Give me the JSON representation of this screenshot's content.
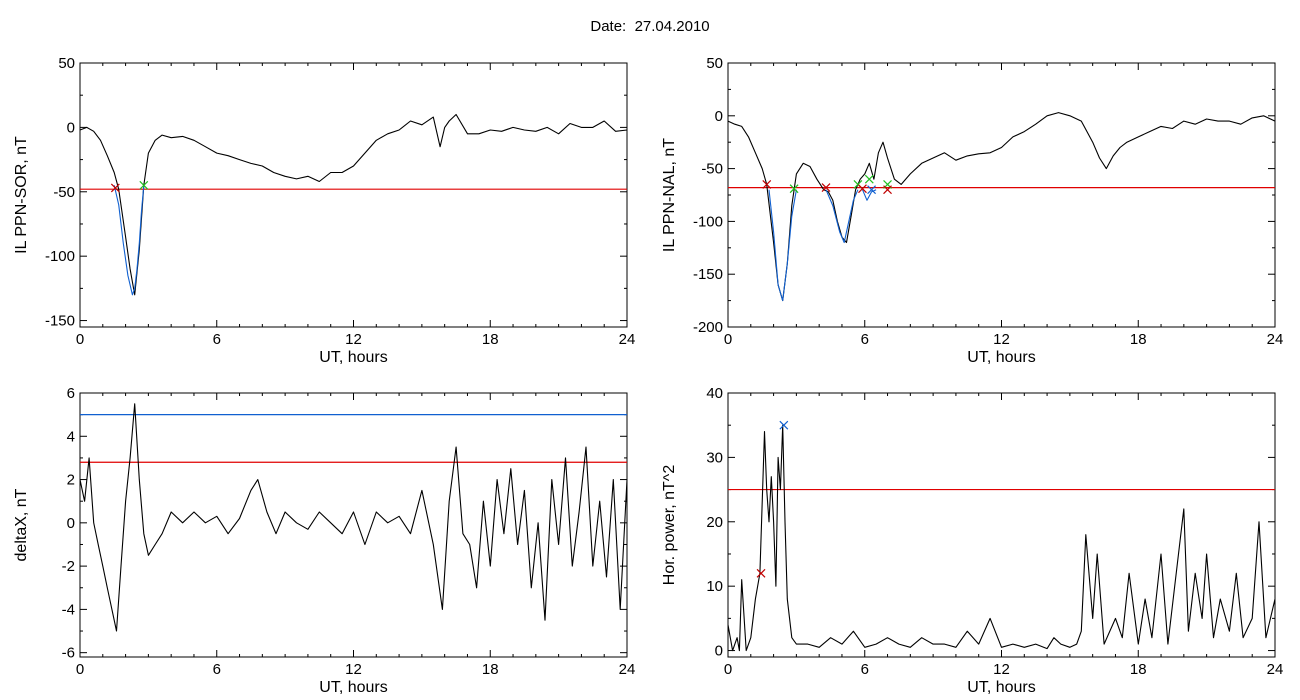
{
  "figure": {
    "date_label": "Date:",
    "date_value": "27.04.2010"
  },
  "chart_data": [
    {
      "type": "line",
      "ylabel": "IL PPN-SOR, nT",
      "xlabel": "UT, hours",
      "xlim": [
        0,
        24
      ],
      "ylim": [
        -155,
        50
      ],
      "xticks": [
        0,
        6,
        12,
        18,
        24
      ],
      "yticks": [
        50,
        0,
        -50,
        -100,
        -150
      ],
      "threshold": {
        "value": -48,
        "color": "#e00000"
      },
      "series": [
        {
          "color": "#000000",
          "x": [
            0,
            0.3,
            0.6,
            0.9,
            1.2,
            1.5,
            1.7,
            2.0,
            2.2,
            2.4,
            2.6,
            2.8,
            3.0,
            3.3,
            3.6,
            4.0,
            4.5,
            5.0,
            5.5,
            6.0,
            6.5,
            7.0,
            7.5,
            8.0,
            8.5,
            9.0,
            9.5,
            10.0,
            10.5,
            11.0,
            11.5,
            12.0,
            12.5,
            13.0,
            13.5,
            14.0,
            14.5,
            15.0,
            15.5,
            15.8,
            16.0,
            16.2,
            16.5,
            17.0,
            17.5,
            18.0,
            18.5,
            19.0,
            19.5,
            20.0,
            20.5,
            21.0,
            21.5,
            22.0,
            22.5,
            23.0,
            23.5,
            24.0
          ],
          "y": [
            -2,
            0,
            -3,
            -10,
            -22,
            -35,
            -48,
            -85,
            -110,
            -130,
            -95,
            -45,
            -20,
            -10,
            -6,
            -8,
            -7,
            -10,
            -15,
            -20,
            -22,
            -25,
            -28,
            -30,
            -35,
            -38,
            -40,
            -38,
            -42,
            -35,
            -35,
            -30,
            -20,
            -10,
            -5,
            -2,
            5,
            2,
            8,
            -15,
            0,
            5,
            10,
            -5,
            -5,
            -2,
            -3,
            0,
            -2,
            -3,
            0,
            -5,
            3,
            0,
            0,
            5,
            -3,
            -2
          ]
        },
        {
          "color": "#1060d0",
          "x": [
            1.5,
            1.7,
            1.9,
            2.1,
            2.3,
            2.4,
            2.5,
            2.6,
            2.7,
            2.8
          ],
          "y": [
            -45,
            -60,
            -90,
            -115,
            -130,
            -125,
            -110,
            -90,
            -65,
            -45
          ]
        }
      ],
      "markers": [
        {
          "x": 1.55,
          "y": -47,
          "color": "#c00000"
        },
        {
          "x": 2.8,
          "y": -45,
          "color": "#20c020"
        }
      ]
    },
    {
      "type": "line",
      "ylabel": "IL PPN-NAL, nT",
      "xlabel": "UT, hours",
      "xlim": [
        0,
        24
      ],
      "ylim": [
        -200,
        50
      ],
      "xticks": [
        0,
        6,
        12,
        18,
        24
      ],
      "yticks": [
        50,
        0,
        -50,
        -100,
        -150,
        -200
      ],
      "threshold": {
        "value": -68,
        "color": "#e00000"
      },
      "series": [
        {
          "color": "#000000",
          "x": [
            0,
            0.3,
            0.6,
            0.9,
            1.2,
            1.5,
            1.7,
            2.0,
            2.2,
            2.4,
            2.6,
            2.8,
            3.0,
            3.3,
            3.6,
            3.9,
            4.2,
            4.4,
            4.6,
            4.8,
            5.0,
            5.2,
            5.4,
            5.6,
            5.8,
            6.0,
            6.2,
            6.4,
            6.6,
            6.8,
            7.0,
            7.3,
            7.6,
            8.0,
            8.5,
            9.0,
            9.5,
            10.0,
            10.5,
            11.0,
            11.5,
            12.0,
            12.5,
            13.0,
            13.5,
            14.0,
            14.5,
            15.0,
            15.5,
            16.0,
            16.3,
            16.6,
            16.9,
            17.2,
            17.5,
            18.0,
            18.5,
            19.0,
            19.5,
            20.0,
            20.5,
            21.0,
            21.5,
            22.0,
            22.5,
            23.0,
            23.5,
            24.0
          ],
          "y": [
            -5,
            -8,
            -10,
            -20,
            -35,
            -50,
            -65,
            -120,
            -160,
            -175,
            -140,
            -85,
            -55,
            -45,
            -48,
            -60,
            -70,
            -72,
            -80,
            -100,
            -115,
            -120,
            -95,
            -70,
            -60,
            -55,
            -45,
            -60,
            -35,
            -25,
            -40,
            -60,
            -65,
            -55,
            -45,
            -40,
            -35,
            -42,
            -38,
            -36,
            -35,
            -30,
            -20,
            -15,
            -8,
            0,
            3,
            0,
            -5,
            -25,
            -40,
            -50,
            -38,
            -30,
            -25,
            -20,
            -15,
            -10,
            -12,
            -5,
            -8,
            -3,
            -5,
            -5,
            -8,
            -2,
            0,
            -5
          ]
        },
        {
          "color": "#1060d0",
          "x": [
            1.8,
            2.0,
            2.2,
            2.4,
            2.6,
            2.8,
            3.0
          ],
          "y": [
            -70,
            -110,
            -160,
            -175,
            -140,
            -95,
            -70
          ]
        },
        {
          "color": "#1060d0",
          "x": [
            4.3,
            4.6,
            4.9,
            5.1,
            5.3,
            5.5,
            5.7
          ],
          "y": [
            -70,
            -85,
            -110,
            -120,
            -100,
            -80,
            -70
          ]
        },
        {
          "color": "#1060d0",
          "x": [
            5.9,
            6.1,
            6.3,
            6.5
          ],
          "y": [
            -70,
            -80,
            -72,
            -70
          ]
        }
      ],
      "markers": [
        {
          "x": 1.7,
          "y": -65,
          "color": "#c00000"
        },
        {
          "x": 2.9,
          "y": -69,
          "color": "#20c020"
        },
        {
          "x": 4.3,
          "y": -68,
          "color": "#c00000"
        },
        {
          "x": 5.7,
          "y": -65,
          "color": "#20c020"
        },
        {
          "x": 5.9,
          "y": -69,
          "color": "#c00000"
        },
        {
          "x": 6.2,
          "y": -60,
          "color": "#20c020"
        },
        {
          "x": 6.3,
          "y": -70,
          "color": "#1060d0"
        },
        {
          "x": 7.0,
          "y": -65,
          "color": "#20c020"
        },
        {
          "x": 7.0,
          "y": -70,
          "color": "#c00000"
        }
      ]
    },
    {
      "type": "line",
      "ylabel": "deltaX, nT",
      "xlabel": "UT, hours",
      "xlim": [
        0,
        24
      ],
      "ylim": [
        -6.2,
        6
      ],
      "xticks": [
        0,
        6,
        12,
        18,
        24
      ],
      "yticks": [
        6,
        4,
        2,
        0,
        -2,
        -4,
        -6
      ],
      "threshold": {
        "value": 2.8,
        "color": "#e00000"
      },
      "threshold2": {
        "value": 5.0,
        "color": "#1060d0"
      },
      "series": [
        {
          "color": "#000000",
          "x": [
            0,
            0.2,
            0.4,
            0.6,
            0.8,
            1.0,
            1.2,
            1.4,
            1.6,
            1.8,
            2.0,
            2.2,
            2.4,
            2.6,
            2.8,
            3.0,
            3.3,
            3.6,
            4.0,
            4.5,
            5.0,
            5.5,
            6.0,
            6.5,
            7.0,
            7.5,
            7.8,
            8.2,
            8.6,
            9.0,
            9.5,
            10.0,
            10.5,
            11.0,
            11.5,
            12.0,
            12.5,
            13.0,
            13.5,
            14.0,
            14.5,
            15.0,
            15.5,
            15.9,
            16.2,
            16.5,
            16.8,
            17.1,
            17.4,
            17.7,
            18.0,
            18.3,
            18.6,
            18.9,
            19.2,
            19.5,
            19.8,
            20.1,
            20.4,
            20.7,
            21.0,
            21.3,
            21.6,
            21.9,
            22.2,
            22.5,
            22.8,
            23.1,
            23.4,
            23.7,
            24.0
          ],
          "y": [
            2,
            1,
            3,
            0,
            -1,
            -2,
            -3,
            -4,
            -5,
            -2,
            1,
            3,
            5.5,
            2,
            -0.5,
            -1.5,
            -1,
            -0.5,
            0.5,
            0,
            0.5,
            0,
            0.3,
            -0.5,
            0.2,
            1.5,
            2,
            0.5,
            -0.5,
            0.5,
            0,
            -0.3,
            0.5,
            0,
            -0.5,
            0.5,
            -1,
            0.5,
            0,
            0.3,
            -0.5,
            1.5,
            -1,
            -4,
            1,
            3.5,
            -0.5,
            -1,
            -3,
            1,
            -2,
            2,
            -0.5,
            2.5,
            -1,
            1.5,
            -3,
            0,
            -4.5,
            2,
            -1,
            3,
            -2,
            0.5,
            3.5,
            -2,
            1,
            -2.5,
            2,
            -4,
            2
          ]
        }
      ],
      "markers": []
    },
    {
      "type": "line",
      "ylabel": "Hor. power, nT^2",
      "xlabel": "UT, hours",
      "xlim": [
        0,
        24
      ],
      "ylim": [
        -1,
        40
      ],
      "xticks": [
        0,
        6,
        12,
        18,
        24
      ],
      "yticks": [
        40,
        30,
        20,
        10,
        0
      ],
      "threshold": {
        "value": 25,
        "color": "#e00000"
      },
      "series": [
        {
          "color": "#000000",
          "x": [
            0,
            0.2,
            0.4,
            0.5,
            0.6,
            0.8,
            1.0,
            1.2,
            1.4,
            1.6,
            1.7,
            1.8,
            1.9,
            2.0,
            2.1,
            2.2,
            2.3,
            2.4,
            2.5,
            2.6,
            2.8,
            3.0,
            3.5,
            4.0,
            4.5,
            5.0,
            5.5,
            6.0,
            6.5,
            7.0,
            7.5,
            8.0,
            8.5,
            9.0,
            9.5,
            10.0,
            10.5,
            11.0,
            11.5,
            12.0,
            12.5,
            13.0,
            13.5,
            14.0,
            14.3,
            14.6,
            15.0,
            15.3,
            15.5,
            15.7,
            16.0,
            16.2,
            16.5,
            17.0,
            17.3,
            17.6,
            18.0,
            18.3,
            18.6,
            19.0,
            19.3,
            19.6,
            20.0,
            20.2,
            20.5,
            20.8,
            21.0,
            21.3,
            21.6,
            22.0,
            22.3,
            22.6,
            23.0,
            23.3,
            23.6,
            24.0
          ],
          "y": [
            4,
            0,
            2,
            0,
            11,
            0,
            2,
            8,
            12,
            34,
            25,
            20,
            27,
            20,
            10,
            30,
            25,
            35,
            20,
            8,
            2,
            1,
            1,
            0.5,
            2,
            1,
            3,
            0.5,
            1,
            2,
            1,
            0.5,
            2,
            1,
            1,
            0.5,
            3,
            1,
            5,
            0.5,
            1,
            0.5,
            1,
            0.3,
            2,
            1,
            0.5,
            1,
            3,
            18,
            5,
            15,
            1,
            5,
            2,
            12,
            1,
            8,
            2,
            15,
            1,
            10,
            22,
            3,
            12,
            5,
            15,
            2,
            8,
            3,
            12,
            2,
            5,
            20,
            2,
            8
          ]
        }
      ],
      "markers": [
        {
          "x": 1.45,
          "y": 12,
          "color": "#c00000"
        },
        {
          "x": 2.45,
          "y": 35,
          "color": "#1060d0"
        }
      ]
    }
  ]
}
